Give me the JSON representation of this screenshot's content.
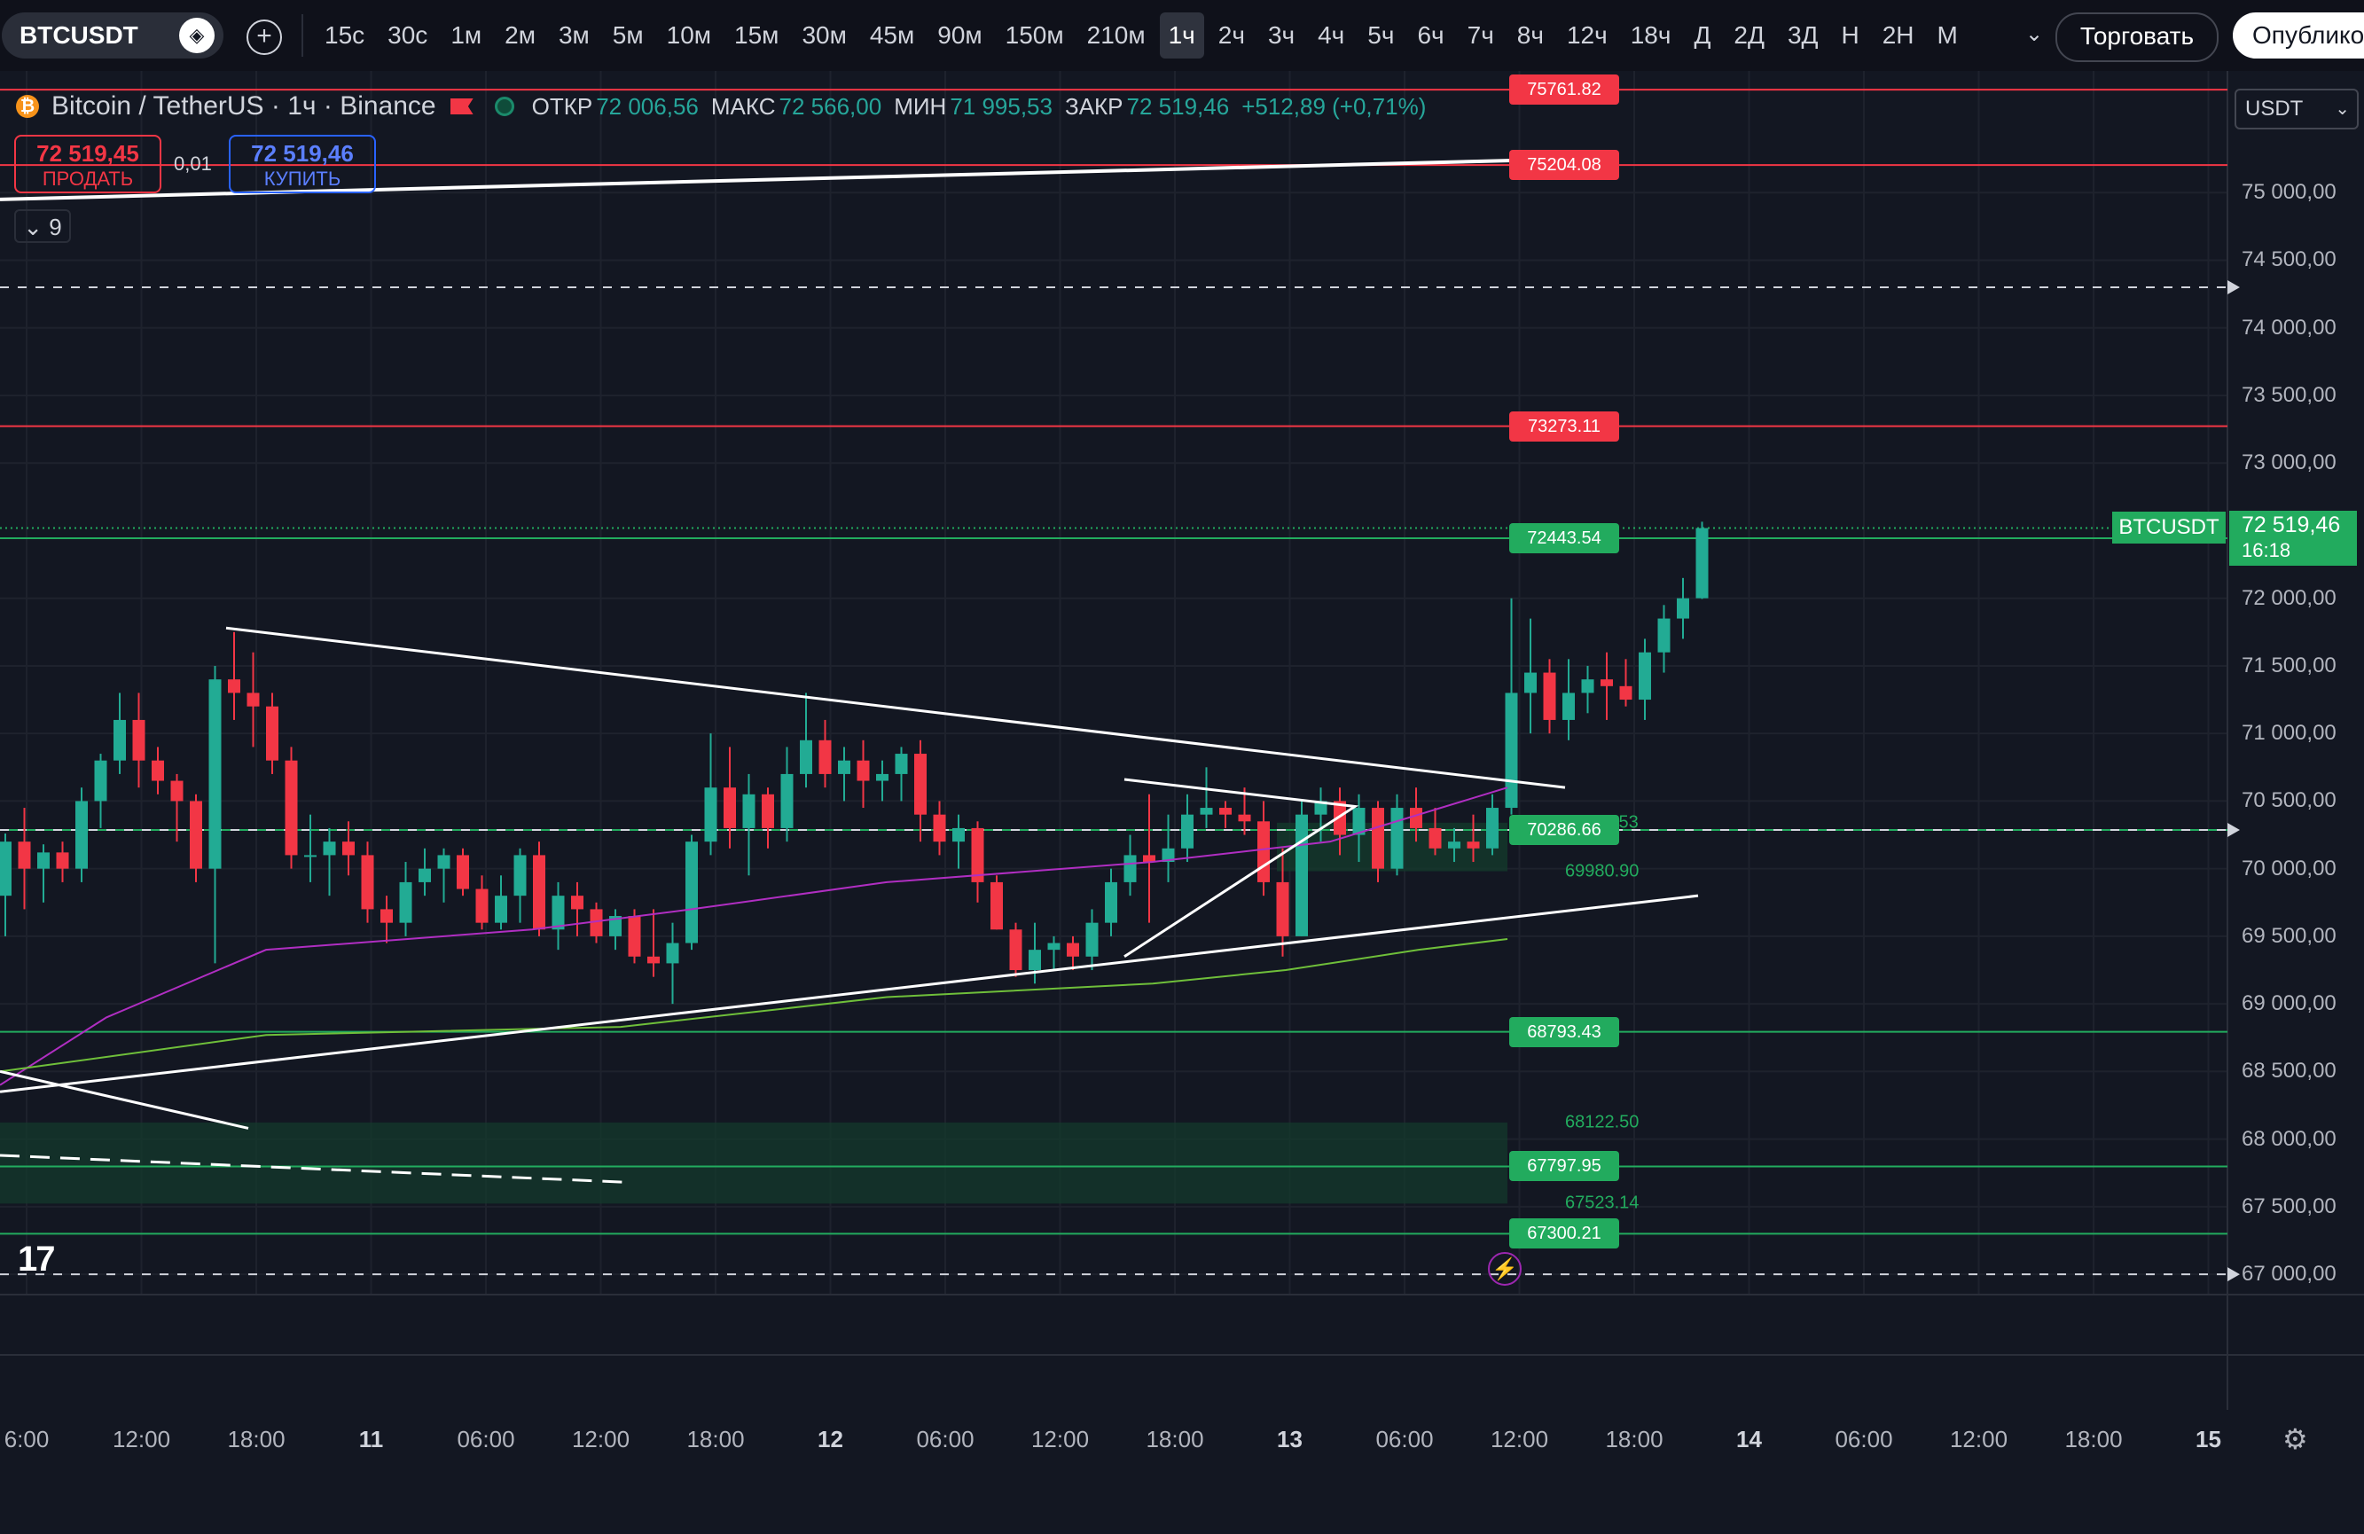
{
  "toolbar": {
    "symbol": "BTCUSDT",
    "intervals": [
      "15с",
      "30с",
      "1м",
      "2м",
      "3м",
      "5м",
      "10м",
      "15м",
      "30м",
      "45м",
      "90м",
      "150м",
      "210м",
      "1ч",
      "2ч",
      "3ч",
      "4ч",
      "5ч",
      "6ч",
      "7ч",
      "8ч",
      "12ч",
      "18ч",
      "Д",
      "2Д",
      "3Д",
      "Н",
      "2Н",
      "М"
    ],
    "active_interval": "1ч",
    "trade_label": "Торговать",
    "publish_label": "Опублико"
  },
  "legend": {
    "title": "Bitcoin / TetherUS · 1ч · Binance",
    "open_label": "ОТКР",
    "open": "72 006,56",
    "high_label": "МАКС",
    "high": "72 566,00",
    "low_label": "МИН",
    "low": "71 995,53",
    "close_label": "ЗАКР",
    "close": "72 519,46",
    "change": "+512,89 (+0,71%)"
  },
  "trade": {
    "sell_price": "72 519,45",
    "sell_label": "ПРОДАТЬ",
    "buy_price": "72 519,46",
    "buy_label": "КУПИТЬ",
    "spread": "0,01",
    "indicators_count": "9"
  },
  "currency": "USDT",
  "price_axis": [
    "75 000,00",
    "74 500,00",
    "74 000,00",
    "73 500,00",
    "73 000,00",
    "72 000,00",
    "71 500,00",
    "71 000,00",
    "70 500,00",
    "70 000,00",
    "69 500,00",
    "69 000,00",
    "68 500,00",
    "68 000,00",
    "67 500,00",
    "67 000,00"
  ],
  "last_price": {
    "name": "BTCUSDT",
    "price": "72 519,46",
    "countdown": "16:18"
  },
  "levels": [
    {
      "label": "75761.82",
      "color": "red"
    },
    {
      "label": "75204.08",
      "color": "red"
    },
    {
      "label": "73273.11",
      "color": "red"
    },
    {
      "label": "72443.54",
      "color": "green"
    },
    {
      "label": "70286.66",
      "color": "green"
    },
    {
      "label": "68793.43",
      "color": "green"
    },
    {
      "label": "67797.95",
      "color": "green"
    },
    {
      "label": "67300.21",
      "color": "green"
    }
  ],
  "zone_labels": [
    "69980.90",
    "68122.50",
    "67523.14",
    ".53"
  ],
  "time_axis": [
    {
      "label": "6:00",
      "bold": false
    },
    {
      "label": "12:00",
      "bold": false
    },
    {
      "label": "18:00",
      "bold": false
    },
    {
      "label": "11",
      "bold": true
    },
    {
      "label": "06:00",
      "bold": false
    },
    {
      "label": "12:00",
      "bold": false
    },
    {
      "label": "18:00",
      "bold": false
    },
    {
      "label": "12",
      "bold": true
    },
    {
      "label": "06:00",
      "bold": false
    },
    {
      "label": "12:00",
      "bold": false
    },
    {
      "label": "18:00",
      "bold": false
    },
    {
      "label": "13",
      "bold": true
    },
    {
      "label": "06:00",
      "bold": false
    },
    {
      "label": "12:00",
      "bold": false
    },
    {
      "label": "18:00",
      "bold": false
    },
    {
      "label": "14",
      "bold": true
    },
    {
      "label": "06:00",
      "bold": false
    },
    {
      "label": "12:00",
      "bold": false
    },
    {
      "label": "18:00",
      "bold": false
    },
    {
      "label": "15",
      "bold": true
    }
  ],
  "colors": {
    "up": "#22ab94",
    "down": "#f23645",
    "ma_fast": "#b02ec2",
    "ma_slow": "#6fbf3a",
    "trendline": "#ffffff"
  },
  "chart_data": {
    "type": "candlestick",
    "ohlc": [
      [
        69800,
        70260,
        69500,
        70200
      ],
      [
        70200,
        70450,
        69700,
        70000
      ],
      [
        70000,
        70180,
        69750,
        70120
      ],
      [
        70120,
        70200,
        69900,
        70000
      ],
      [
        70000,
        70600,
        69900,
        70500
      ],
      [
        70500,
        70850,
        70300,
        70800
      ],
      [
        70800,
        71300,
        70700,
        71100
      ],
      [
        71100,
        71300,
        70600,
        70800
      ],
      [
        70800,
        70900,
        70550,
        70650
      ],
      [
        70650,
        70700,
        70200,
        70500
      ],
      [
        70500,
        70550,
        69900,
        70000
      ],
      [
        70000,
        71500,
        69300,
        71400
      ],
      [
        71400,
        71750,
        71100,
        71300
      ],
      [
        71300,
        71600,
        70900,
        71200
      ],
      [
        71200,
        71300,
        70700,
        70800
      ],
      [
        70800,
        70900,
        70000,
        70100
      ],
      [
        70100,
        70400,
        69900,
        70100
      ],
      [
        70100,
        70300,
        69800,
        70200
      ],
      [
        70200,
        70350,
        69950,
        70100
      ],
      [
        70100,
        70200,
        69600,
        69700
      ],
      [
        69700,
        69800,
        69450,
        69600
      ],
      [
        69600,
        70050,
        69500,
        69900
      ],
      [
        69900,
        70150,
        69800,
        70000
      ],
      [
        70000,
        70150,
        69750,
        70100
      ],
      [
        70100,
        70150,
        69800,
        69850
      ],
      [
        69850,
        69950,
        69550,
        69600
      ],
      [
        69600,
        69950,
        69550,
        69800
      ],
      [
        69800,
        70150,
        69600,
        70100
      ],
      [
        70100,
        70200,
        69500,
        69550
      ],
      [
        69550,
        69900,
        69400,
        69800
      ],
      [
        69800,
        69900,
        69500,
        69700
      ],
      [
        69700,
        69750,
        69450,
        69500
      ],
      [
        69500,
        69700,
        69400,
        69650
      ],
      [
        69650,
        69700,
        69300,
        69350
      ],
      [
        69350,
        69700,
        69200,
        69300
      ],
      [
        69300,
        69600,
        69000,
        69450
      ],
      [
        69450,
        70250,
        69400,
        70200
      ],
      [
        70200,
        71000,
        70100,
        70600
      ],
      [
        70600,
        70900,
        70150,
        70300
      ],
      [
        70300,
        70700,
        69950,
        70550
      ],
      [
        70550,
        70600,
        70150,
        70300
      ],
      [
        70300,
        70900,
        70200,
        70700
      ],
      [
        70700,
        71300,
        70600,
        70950
      ],
      [
        70950,
        71100,
        70600,
        70700
      ],
      [
        70700,
        70900,
        70500,
        70800
      ],
      [
        70800,
        70950,
        70450,
        70650
      ],
      [
        70650,
        70800,
        70500,
        70700
      ],
      [
        70700,
        70900,
        70500,
        70850
      ],
      [
        70850,
        70950,
        70200,
        70400
      ],
      [
        70400,
        70500,
        70100,
        70200
      ],
      [
        70200,
        70400,
        70000,
        70300
      ],
      [
        70300,
        70350,
        69750,
        69900
      ],
      [
        69900,
        69950,
        69550,
        69550
      ],
      [
        69550,
        69600,
        69200,
        69250
      ],
      [
        69250,
        69600,
        69150,
        69400
      ],
      [
        69400,
        69500,
        69250,
        69450
      ],
      [
        69450,
        69500,
        69250,
        69350
      ],
      [
        69350,
        69700,
        69250,
        69600
      ],
      [
        69600,
        70000,
        69500,
        69900
      ],
      [
        69900,
        70250,
        69800,
        70100
      ],
      [
        70100,
        70550,
        69600,
        70050
      ],
      [
        70050,
        70400,
        69900,
        70150
      ],
      [
        70150,
        70550,
        70050,
        70400
      ],
      [
        70400,
        70750,
        70300,
        70450
      ],
      [
        70450,
        70500,
        70300,
        70400
      ],
      [
        70400,
        70600,
        70250,
        70350
      ],
      [
        70350,
        70500,
        69800,
        69900
      ],
      [
        69900,
        70150,
        69350,
        69500
      ],
      [
        69500,
        70500,
        69500,
        70400
      ],
      [
        70400,
        70600,
        70200,
        70500
      ],
      [
        70500,
        70600,
        70100,
        70250
      ],
      [
        70250,
        70550,
        70050,
        70450
      ],
      [
        70450,
        70500,
        69900,
        70000
      ],
      [
        70000,
        70550,
        69950,
        70450
      ],
      [
        70450,
        70600,
        70200,
        70300
      ],
      [
        70300,
        70450,
        70100,
        70150
      ],
      [
        70150,
        70300,
        70050,
        70200
      ],
      [
        70200,
        70400,
        70050,
        70150
      ],
      [
        70150,
        70550,
        70100,
        70450
      ],
      [
        70450,
        72000,
        70400,
        71300
      ],
      [
        71300,
        71850,
        71000,
        71450
      ],
      [
        71450,
        71550,
        71000,
        71100
      ],
      [
        71100,
        71550,
        70950,
        71300
      ],
      [
        71300,
        71500,
        71150,
        71400
      ],
      [
        71400,
        71600,
        71100,
        71350
      ],
      [
        71350,
        71550,
        71200,
        71250
      ],
      [
        71250,
        71700,
        71100,
        71600
      ],
      [
        71600,
        71950,
        71450,
        71850
      ],
      [
        71850,
        72150,
        71700,
        72000
      ],
      [
        72000,
        72566,
        71995,
        72519
      ]
    ],
    "price_range": [
      66850,
      75900
    ],
    "x_range": [
      "10 дек 06:00",
      "15"
    ]
  }
}
